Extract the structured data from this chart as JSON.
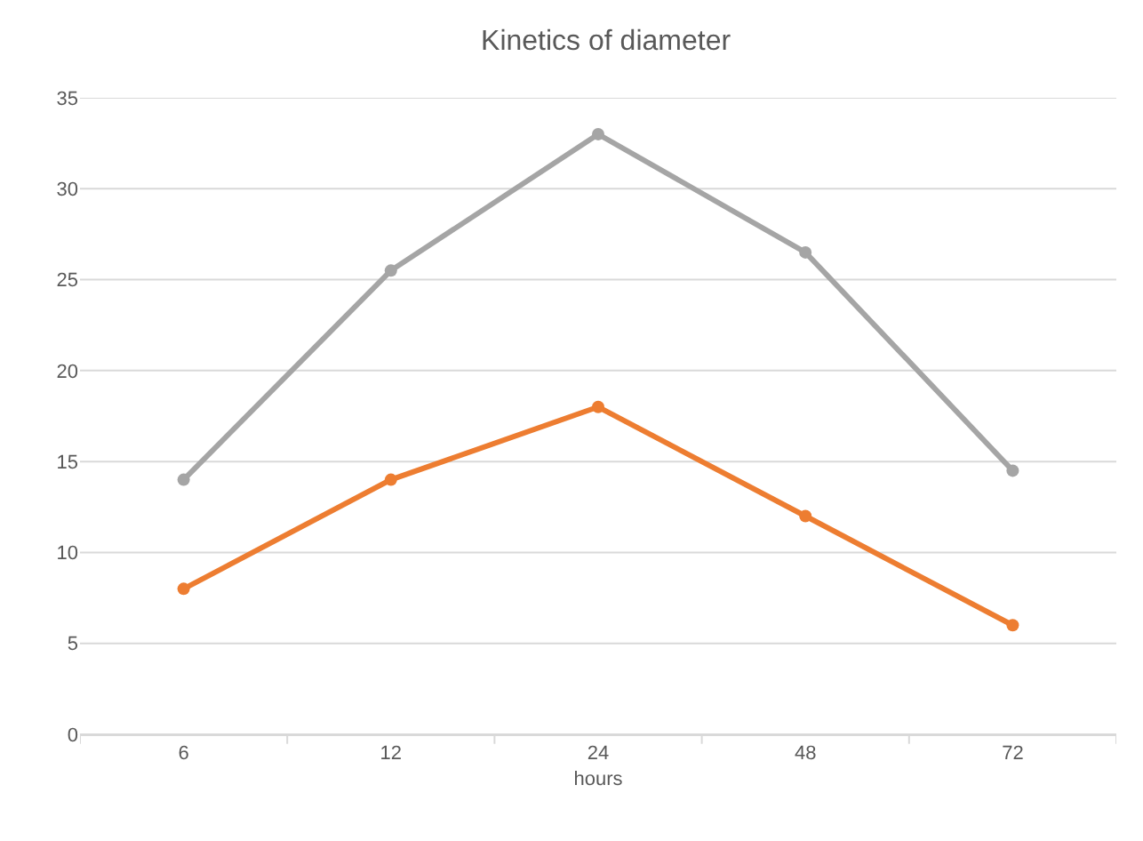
{
  "chart_data": {
    "type": "line",
    "title": "Kinetics of diameter",
    "xlabel": "hours",
    "categories": [
      "6",
      "12",
      "24",
      "48",
      "72"
    ],
    "series": [
      {
        "color": "#a5a5a5",
        "values": [
          14,
          25.5,
          33,
          26.5,
          14.5
        ]
      },
      {
        "color": "#ed7d31",
        "values": [
          8,
          14,
          18,
          12,
          6
        ]
      }
    ],
    "ylim": [
      0,
      35
    ],
    "yticks": [
      0,
      5,
      10,
      15,
      20,
      25,
      30,
      35
    ],
    "grid": "y",
    "marker": "circle",
    "line_style": "solid"
  }
}
